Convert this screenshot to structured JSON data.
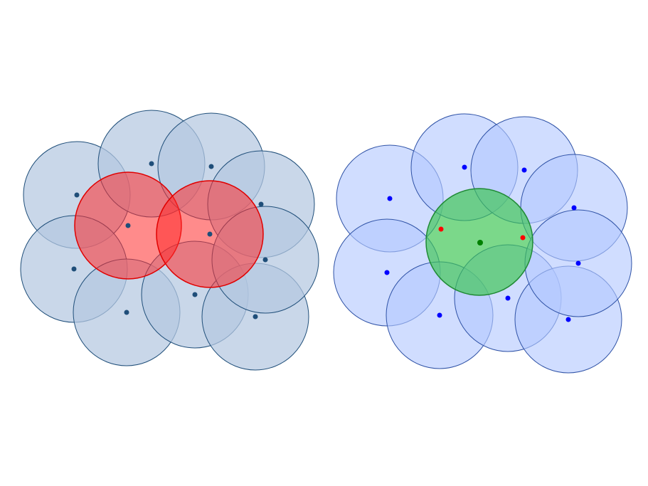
{
  "colors": {
    "left_circle_fill": "#b4c7e1",
    "left_circle_stroke": "#1f4e79",
    "left_dot": "#1f4e79",
    "left_highlight_fill": "#ff2b2b",
    "left_highlight_stroke": "#e00000",
    "right_circle_fill": "#b3c8ff",
    "right_circle_stroke": "#2f52a6",
    "right_dot": "#0000ff",
    "right_highlight_fill": "#3cc552",
    "right_highlight_stroke": "#1f8a34",
    "right_center_dot": "#008000",
    "right_red_dot": "#ff0000"
  },
  "panels": [
    {
      "name": "left-panel",
      "description_hidden": true
    },
    {
      "name": "right-panel",
      "description_hidden": true
    }
  ]
}
